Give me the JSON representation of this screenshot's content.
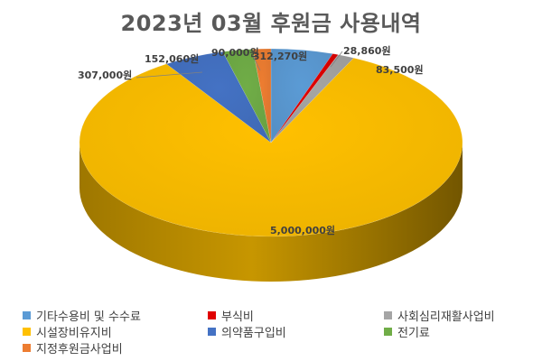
{
  "chart_data": {
    "type": "pie",
    "title": "2023년 03월 후원금 사용내역",
    "slices": [
      {
        "name": "기타수용비 및 수수료",
        "value": 312270,
        "label": "312,270원",
        "color": "#5B9BD5"
      },
      {
        "name": "부식비",
        "value": 28860,
        "label": "28,860원",
        "color": "#E00000"
      },
      {
        "name": "사회심리재활사업비",
        "value": 83500,
        "label": "83,500원",
        "color": "#A5A5A5"
      },
      {
        "name": "시설장비유지비",
        "value": 5000000,
        "label": "5,000,000원",
        "color": "#FFC000"
      },
      {
        "name": "의약품구입비",
        "value": 307000,
        "label": "307,000원",
        "color": "#4472C4"
      },
      {
        "name": "전기료",
        "value": 152060,
        "label": "152,060원",
        "color": "#70AD47"
      },
      {
        "name": "지정후원금사업비",
        "value": 90000,
        "label": "90,000원",
        "color": "#ED7D31"
      }
    ],
    "legend_position": "bottom"
  }
}
